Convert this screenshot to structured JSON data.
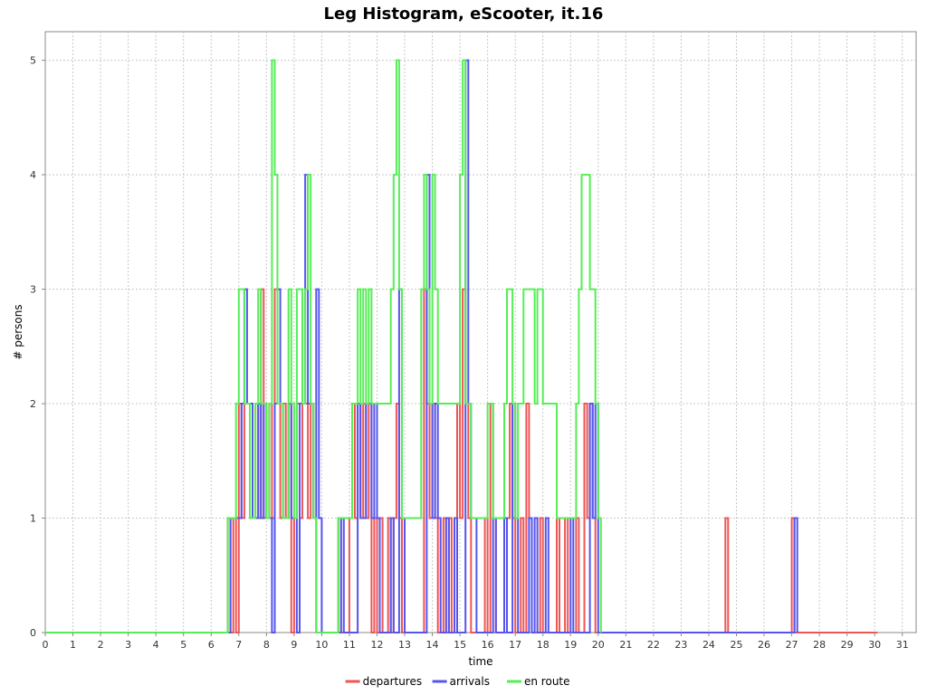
{
  "chart_data": {
    "type": "line",
    "step": true,
    "title": "Leg Histogram, eScooter, it.16",
    "xlabel": "time",
    "ylabel": "# persons",
    "xlim": [
      0,
      31.5
    ],
    "ylim": [
      0,
      5.25
    ],
    "xticks": [
      0,
      1,
      2,
      3,
      4,
      5,
      6,
      7,
      8,
      9,
      10,
      11,
      12,
      13,
      14,
      15,
      16,
      17,
      18,
      19,
      20,
      21,
      22,
      23,
      24,
      25,
      26,
      27,
      28,
      29,
      30,
      31
    ],
    "yticks": [
      0,
      1,
      2,
      3,
      4,
      5
    ],
    "grid": true,
    "legend_position": "bottom",
    "series": [
      {
        "name": "departures",
        "color": "#ee5555",
        "points": [
          [
            0,
            0
          ],
          [
            6.6,
            1
          ],
          [
            6.7,
            0
          ],
          [
            6.8,
            1
          ],
          [
            6.9,
            0
          ],
          [
            7.0,
            2
          ],
          [
            7.1,
            1
          ],
          [
            7.2,
            2
          ],
          [
            7.4,
            1
          ],
          [
            7.6,
            2
          ],
          [
            7.7,
            1
          ],
          [
            7.8,
            3
          ],
          [
            7.9,
            1
          ],
          [
            8.1,
            2
          ],
          [
            8.2,
            1
          ],
          [
            8.3,
            3
          ],
          [
            8.4,
            2
          ],
          [
            8.5,
            1
          ],
          [
            8.6,
            2
          ],
          [
            8.7,
            1
          ],
          [
            8.8,
            2
          ],
          [
            8.9,
            0
          ],
          [
            9.0,
            1
          ],
          [
            9.1,
            2
          ],
          [
            9.2,
            1
          ],
          [
            9.3,
            2
          ],
          [
            9.5,
            1
          ],
          [
            9.6,
            2
          ],
          [
            9.7,
            1
          ],
          [
            9.8,
            0
          ],
          [
            10.6,
            1
          ],
          [
            10.7,
            0
          ],
          [
            11.0,
            1
          ],
          [
            11.1,
            2
          ],
          [
            11.2,
            1
          ],
          [
            11.3,
            2
          ],
          [
            11.4,
            1
          ],
          [
            11.5,
            2
          ],
          [
            11.6,
            1
          ],
          [
            11.7,
            2
          ],
          [
            11.8,
            0
          ],
          [
            11.9,
            1
          ],
          [
            12.0,
            0
          ],
          [
            12.1,
            1
          ],
          [
            12.2,
            0
          ],
          [
            12.4,
            1
          ],
          [
            12.5,
            0
          ],
          [
            12.6,
            1
          ],
          [
            12.7,
            2
          ],
          [
            12.8,
            1
          ],
          [
            12.9,
            0
          ],
          [
            13.7,
            3
          ],
          [
            13.8,
            2
          ],
          [
            13.9,
            1
          ],
          [
            14.0,
            2
          ],
          [
            14.1,
            1
          ],
          [
            14.2,
            0
          ],
          [
            14.4,
            1
          ],
          [
            14.5,
            0
          ],
          [
            14.6,
            1
          ],
          [
            14.7,
            0
          ],
          [
            14.9,
            2
          ],
          [
            15.0,
            1
          ],
          [
            15.1,
            3
          ],
          [
            15.2,
            2
          ],
          [
            15.3,
            1
          ],
          [
            15.4,
            0
          ],
          [
            15.9,
            1
          ],
          [
            16.0,
            0
          ],
          [
            16.1,
            2
          ],
          [
            16.2,
            1
          ],
          [
            16.3,
            0
          ],
          [
            16.7,
            1
          ],
          [
            16.8,
            2
          ],
          [
            16.9,
            1
          ],
          [
            17.0,
            0
          ],
          [
            17.2,
            1
          ],
          [
            17.3,
            0
          ],
          [
            17.4,
            2
          ],
          [
            17.5,
            1
          ],
          [
            17.6,
            0
          ],
          [
            17.9,
            1
          ],
          [
            18.0,
            0
          ],
          [
            18.5,
            1
          ],
          [
            18.6,
            0
          ],
          [
            18.8,
            1
          ],
          [
            18.9,
            0
          ],
          [
            19.2,
            1
          ],
          [
            19.3,
            0
          ],
          [
            19.5,
            2
          ],
          [
            19.6,
            1
          ],
          [
            19.7,
            2
          ],
          [
            19.8,
            1
          ],
          [
            19.9,
            0
          ],
          [
            24.6,
            1
          ],
          [
            24.7,
            0
          ],
          [
            27.0,
            1
          ],
          [
            27.1,
            0
          ],
          [
            30.1,
            0
          ]
        ]
      },
      {
        "name": "arrivals",
        "color": "#5555ee",
        "points": [
          [
            0,
            0
          ],
          [
            6.7,
            1
          ],
          [
            6.9,
            1
          ],
          [
            7.1,
            2
          ],
          [
            7.2,
            3
          ],
          [
            7.3,
            2
          ],
          [
            7.5,
            1
          ],
          [
            7.7,
            2
          ],
          [
            7.8,
            1
          ],
          [
            7.9,
            2
          ],
          [
            8.0,
            1
          ],
          [
            8.2,
            0
          ],
          [
            8.3,
            2
          ],
          [
            8.4,
            3
          ],
          [
            8.5,
            2
          ],
          [
            8.6,
            1
          ],
          [
            8.8,
            2
          ],
          [
            8.9,
            1
          ],
          [
            9.1,
            0
          ],
          [
            9.2,
            2
          ],
          [
            9.4,
            4
          ],
          [
            9.5,
            2
          ],
          [
            9.7,
            1
          ],
          [
            9.8,
            3
          ],
          [
            9.9,
            1
          ],
          [
            10.0,
            0
          ],
          [
            10.7,
            1
          ],
          [
            10.8,
            0
          ],
          [
            11.3,
            2
          ],
          [
            11.4,
            1
          ],
          [
            11.6,
            2
          ],
          [
            11.8,
            1
          ],
          [
            11.9,
            2
          ],
          [
            12.0,
            1
          ],
          [
            12.1,
            0
          ],
          [
            12.5,
            1
          ],
          [
            12.6,
            0
          ],
          [
            12.8,
            3
          ],
          [
            12.9,
            1
          ],
          [
            13.0,
            0
          ],
          [
            13.8,
            4
          ],
          [
            13.9,
            2
          ],
          [
            14.0,
            1
          ],
          [
            14.1,
            2
          ],
          [
            14.2,
            1
          ],
          [
            14.3,
            0
          ],
          [
            14.5,
            1
          ],
          [
            14.6,
            0
          ],
          [
            14.8,
            1
          ],
          [
            14.9,
            0
          ],
          [
            15.2,
            5
          ],
          [
            15.3,
            2
          ],
          [
            15.4,
            1
          ],
          [
            15.6,
            0
          ],
          [
            16.2,
            1
          ],
          [
            16.3,
            0
          ],
          [
            16.6,
            1
          ],
          [
            16.7,
            0
          ],
          [
            16.9,
            2
          ],
          [
            17.0,
            1
          ],
          [
            17.1,
            0
          ],
          [
            17.5,
            1
          ],
          [
            17.6,
            0
          ],
          [
            17.7,
            1
          ],
          [
            17.8,
            0
          ],
          [
            18.1,
            1
          ],
          [
            18.2,
            0
          ],
          [
            19.0,
            1
          ],
          [
            19.1,
            0
          ],
          [
            19.7,
            2
          ],
          [
            19.8,
            1
          ],
          [
            19.9,
            2
          ],
          [
            20.0,
            0
          ],
          [
            27.1,
            1
          ],
          [
            27.2,
            0
          ]
        ]
      },
      {
        "name": "en route",
        "color": "#55ee55",
        "points": [
          [
            0,
            0
          ],
          [
            6.6,
            1
          ],
          [
            6.9,
            2
          ],
          [
            7.0,
            3
          ],
          [
            7.2,
            2
          ],
          [
            7.4,
            1
          ],
          [
            7.6,
            2
          ],
          [
            7.7,
            3
          ],
          [
            7.8,
            2
          ],
          [
            8.0,
            1
          ],
          [
            8.1,
            2
          ],
          [
            8.2,
            5
          ],
          [
            8.3,
            4
          ],
          [
            8.4,
            2
          ],
          [
            8.6,
            1
          ],
          [
            8.8,
            3
          ],
          [
            8.9,
            2
          ],
          [
            9.0,
            1
          ],
          [
            9.1,
            3
          ],
          [
            9.3,
            2
          ],
          [
            9.4,
            3
          ],
          [
            9.5,
            4
          ],
          [
            9.6,
            2
          ],
          [
            9.7,
            1
          ],
          [
            9.8,
            0
          ],
          [
            10.6,
            1
          ],
          [
            11.1,
            2
          ],
          [
            11.3,
            3
          ],
          [
            11.4,
            2
          ],
          [
            11.5,
            3
          ],
          [
            11.6,
            2
          ],
          [
            11.7,
            3
          ],
          [
            11.8,
            2
          ],
          [
            12.5,
            3
          ],
          [
            12.6,
            4
          ],
          [
            12.7,
            5
          ],
          [
            12.8,
            3
          ],
          [
            12.9,
            1
          ],
          [
            13.3,
            1
          ],
          [
            13.6,
            3
          ],
          [
            13.7,
            4
          ],
          [
            13.8,
            3
          ],
          [
            13.9,
            2
          ],
          [
            14.0,
            4
          ],
          [
            14.1,
            3
          ],
          [
            14.2,
            2
          ],
          [
            14.4,
            2
          ],
          [
            14.8,
            2
          ],
          [
            15.0,
            4
          ],
          [
            15.1,
            5
          ],
          [
            15.2,
            2
          ],
          [
            15.4,
            1
          ],
          [
            15.9,
            1
          ],
          [
            16.0,
            2
          ],
          [
            16.2,
            1
          ],
          [
            16.6,
            2
          ],
          [
            16.7,
            3
          ],
          [
            16.9,
            2
          ],
          [
            17.0,
            1
          ],
          [
            17.1,
            2
          ],
          [
            17.3,
            3
          ],
          [
            17.7,
            2
          ],
          [
            17.8,
            3
          ],
          [
            18.0,
            2
          ],
          [
            18.3,
            2
          ],
          [
            18.5,
            1
          ],
          [
            19.0,
            1
          ],
          [
            19.2,
            2
          ],
          [
            19.3,
            3
          ],
          [
            19.4,
            4
          ],
          [
            19.7,
            3
          ],
          [
            19.9,
            2
          ],
          [
            20.0,
            1
          ],
          [
            20.1,
            0
          ]
        ]
      }
    ]
  }
}
